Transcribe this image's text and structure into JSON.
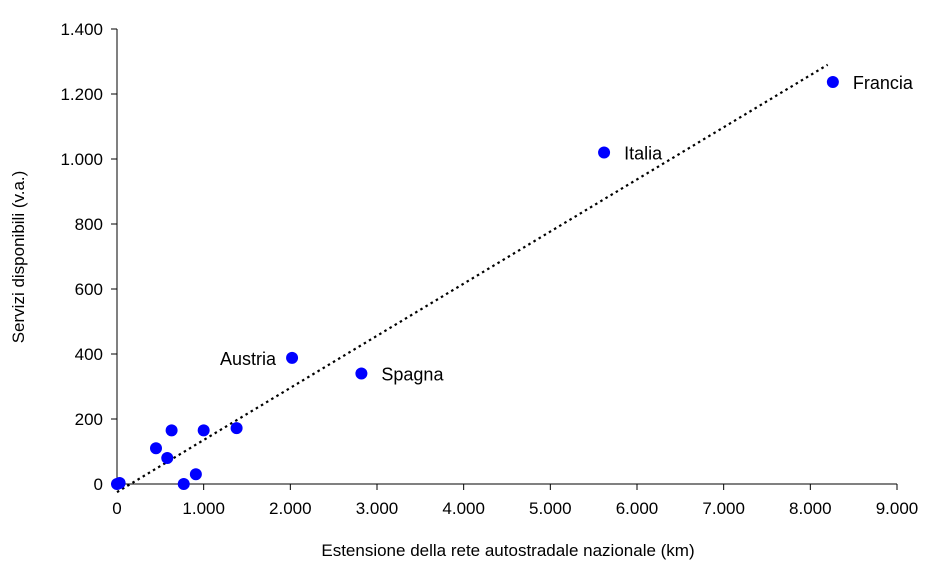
{
  "chart_data": {
    "type": "scatter",
    "xlabel": "Estensione della rete autostradale nazionale (km)",
    "ylabel": "Servizi disponibili (v.a.)",
    "xlim": [
      0,
      9000
    ],
    "ylim": [
      0,
      1400
    ],
    "x_ticks": [
      0,
      1000,
      2000,
      3000,
      4000,
      5000,
      6000,
      7000,
      8000,
      9000
    ],
    "x_tick_labels": [
      "0",
      "1.000",
      "2.000",
      "3.000",
      "4.000",
      "5.000",
      "6.000",
      "7.000",
      "8.000",
      "9.000"
    ],
    "y_ticks": [
      0,
      200,
      400,
      600,
      800,
      1000,
      1200,
      1400
    ],
    "y_tick_labels": [
      "0",
      "200",
      "400",
      "600",
      "800",
      "1.000",
      "1.200",
      "1.400"
    ],
    "grid": false,
    "marker_color": "#0000ff",
    "trendline": {
      "style": "dotted",
      "x": [
        0,
        8200
      ],
      "y": [
        -25,
        1290
      ]
    },
    "points": [
      {
        "x": 0,
        "y": 0,
        "label": ""
      },
      {
        "x": 30,
        "y": 3,
        "label": ""
      },
      {
        "x": 450,
        "y": 110,
        "label": ""
      },
      {
        "x": 580,
        "y": 80,
        "label": ""
      },
      {
        "x": 630,
        "y": 165,
        "label": ""
      },
      {
        "x": 770,
        "y": 0,
        "label": ""
      },
      {
        "x": 910,
        "y": 30,
        "label": ""
      },
      {
        "x": 1000,
        "y": 165,
        "label": ""
      },
      {
        "x": 1380,
        "y": 172,
        "label": ""
      },
      {
        "x": 2020,
        "y": 388,
        "label": "Austria",
        "label_side": "left"
      },
      {
        "x": 2820,
        "y": 340,
        "label": "Spagna",
        "label_side": "right"
      },
      {
        "x": 5620,
        "y": 1020,
        "label": "Italia",
        "label_side": "right"
      },
      {
        "x": 8260,
        "y": 1237,
        "label": "Francia",
        "label_side": "right"
      }
    ]
  }
}
